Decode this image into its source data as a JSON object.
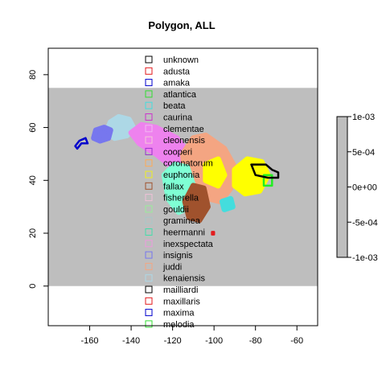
{
  "chart_data": {
    "type": "map",
    "title": "Polygon, ALL",
    "xlabel": "",
    "ylabel": "",
    "xlim": [
      -180,
      -50
    ],
    "ylim": [
      -15,
      90
    ],
    "x_ticks": [
      -160,
      -140,
      -120,
      -100,
      -80,
      -60
    ],
    "y_ticks": [
      0,
      20,
      40,
      60,
      80
    ],
    "grid": false,
    "background_region": {
      "x": [
        -180,
        -50
      ],
      "y": [
        0,
        75
      ],
      "color": "#bebebe"
    },
    "legend": {
      "placement": "top-center",
      "entries": [
        {
          "name": "unknown",
          "color": "#000000"
        },
        {
          "name": "adusta",
          "color": "#e31a1c"
        },
        {
          "name": "amaka",
          "color": "#0000cc"
        },
        {
          "name": "atlantica",
          "color": "#33dd33"
        },
        {
          "name": "beata",
          "color": "#44dddd"
        },
        {
          "name": "caurina",
          "color": "#cc33cc"
        },
        {
          "name": "clementae",
          "color": "#f2b8f2"
        },
        {
          "name": "cleonensis",
          "color": "#f5c8d8"
        },
        {
          "name": "cooperi",
          "color": "#9933cc"
        },
        {
          "name": "coronatorum",
          "color": "#ffaa55"
        },
        {
          "name": "euphonia",
          "color": "#eeee22"
        },
        {
          "name": "fallax",
          "color": "#a0522d"
        },
        {
          "name": "fisherella",
          "color": "#f0c0d8"
        },
        {
          "name": "gouldii",
          "color": "#99ee99"
        },
        {
          "name": "graminea",
          "color": "#a8c8c8"
        },
        {
          "name": "heermanni",
          "color": "#44ddaa"
        },
        {
          "name": "inexspectata",
          "color": "#ee99dd"
        },
        {
          "name": "insignis",
          "color": "#7777ee"
        },
        {
          "name": "juddi",
          "color": "#f4a582"
        },
        {
          "name": "kenaiensis",
          "color": "#add8e6"
        },
        {
          "name": "mailliardi",
          "color": "#000000"
        },
        {
          "name": "maxillaris",
          "color": "#e31a1c"
        },
        {
          "name": "maxima",
          "color": "#0000cc"
        },
        {
          "name": "melodia",
          "color": "#33dd33"
        }
      ]
    },
    "colorbar": {
      "ticks": [
        "1e-03",
        "5e-04",
        "0e+00",
        "-5e-04",
        "-1e-03"
      ],
      "range": [
        -0.001,
        0.001
      ],
      "color": "#bebebe"
    },
    "polygons": [
      {
        "name": "kenaiensis",
        "color": "#add8e6",
        "filled": true,
        "points": [
          [
            -152,
            58
          ],
          [
            -150,
            62
          ],
          [
            -146,
            64
          ],
          [
            -141,
            63
          ],
          [
            -139,
            60
          ],
          [
            -142,
            57
          ],
          [
            -148,
            56
          ]
        ]
      },
      {
        "name": "insignis",
        "color": "#7777ee",
        "filled": true,
        "points": [
          [
            -158,
            56
          ],
          [
            -157,
            59
          ],
          [
            -153,
            60
          ],
          [
            -150,
            59
          ],
          [
            -151,
            56
          ],
          [
            -155,
            55
          ]
        ]
      },
      {
        "name": "inexspectata",
        "color": "#ee82ee",
        "filled": true,
        "points": [
          [
            -140,
            58
          ],
          [
            -135,
            61
          ],
          [
            -128,
            60
          ],
          [
            -118,
            56
          ],
          [
            -112,
            50
          ],
          [
            -112,
            44
          ],
          [
            -120,
            45
          ],
          [
            -128,
            50
          ],
          [
            -136,
            54
          ]
        ]
      },
      {
        "name": "juddi",
        "color": "#f4a582",
        "filled": true,
        "points": [
          [
            -115,
            50
          ],
          [
            -110,
            56
          ],
          [
            -104,
            57
          ],
          [
            -95,
            52
          ],
          [
            -90,
            45
          ],
          [
            -92,
            37
          ],
          [
            -97,
            32
          ],
          [
            -102,
            33
          ],
          [
            -108,
            37
          ],
          [
            -114,
            40
          ]
        ]
      },
      {
        "name": "heermanni",
        "color": "#7fffd4",
        "filled": true,
        "points": [
          [
            -124,
            42
          ],
          [
            -119,
            46
          ],
          [
            -113,
            45
          ],
          [
            -110,
            38
          ],
          [
            -112,
            30
          ],
          [
            -117,
            28
          ],
          [
            -122,
            33
          ]
        ]
      },
      {
        "name": "fallax",
        "color": "#a0522d",
        "filled": true,
        "points": [
          [
            -114,
            32
          ],
          [
            -110,
            38
          ],
          [
            -105,
            37
          ],
          [
            -103,
            30
          ],
          [
            -107,
            25
          ],
          [
            -112,
            26
          ]
        ]
      },
      {
        "name": "euphonia",
        "color": "#ffff00",
        "filled": true,
        "points": [
          [
            -90,
            44
          ],
          [
            -84,
            48
          ],
          [
            -77,
            47
          ],
          [
            -74,
            42
          ],
          [
            -78,
            36
          ],
          [
            -85,
            35
          ],
          [
            -90,
            38
          ]
        ]
      },
      {
        "name": "euphonia-west",
        "color": "#ffff00",
        "filled": true,
        "points": [
          [
            -104,
            46
          ],
          [
            -98,
            48
          ],
          [
            -95,
            42
          ],
          [
            -98,
            38
          ],
          [
            -104,
            40
          ]
        ]
      },
      {
        "name": "beata",
        "color": "#44dddd",
        "filled": true,
        "points": [
          [
            -96,
            32
          ],
          [
            -92,
            33
          ],
          [
            -91,
            30
          ],
          [
            -95,
            29
          ]
        ]
      },
      {
        "name": "atlantica",
        "color": "#22ee22",
        "filled": false,
        "points": [
          [
            -76,
            42
          ],
          [
            -72,
            42
          ],
          [
            -72,
            38
          ],
          [
            -76,
            38
          ]
        ]
      },
      {
        "name": "unknown",
        "color": "#000000",
        "filled": false,
        "points": [
          [
            -82,
            46
          ],
          [
            -75,
            46
          ],
          [
            -72,
            44
          ],
          [
            -69,
            43
          ],
          [
            -69,
            41
          ],
          [
            -74,
            41
          ],
          [
            -80,
            42
          ]
        ]
      },
      {
        "name": "amaka",
        "color": "#0000cc",
        "filled": false,
        "points": [
          [
            -167,
            53
          ],
          [
            -165,
            55
          ],
          [
            -162,
            56
          ],
          [
            -161,
            54
          ],
          [
            -164,
            54
          ],
          [
            -166,
            52
          ]
        ]
      },
      {
        "name": "adusta",
        "color": "#e31a1c",
        "filled": false,
        "points": [
          [
            -101,
            19.5
          ],
          [
            -100,
            19.5
          ],
          [
            -100,
            20.5
          ],
          [
            -101,
            20.5
          ]
        ]
      }
    ]
  }
}
